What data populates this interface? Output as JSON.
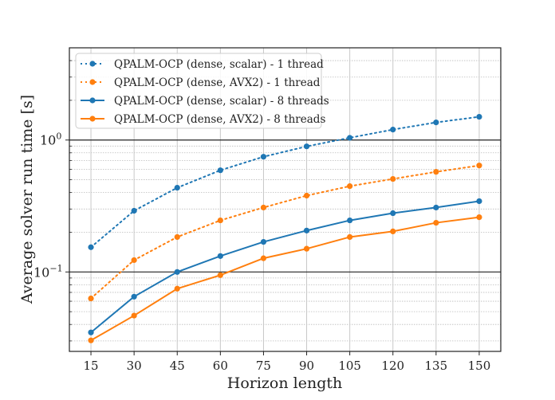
{
  "chart_data": {
    "type": "line",
    "title": "",
    "xlabel": "Horizon length",
    "ylabel": "Average solver run time [s]",
    "yscale": "log",
    "ylim": [
      0.025,
      5
    ],
    "xlim": [
      7.5,
      157.5
    ],
    "x": [
      15,
      30,
      45,
      60,
      75,
      90,
      105,
      120,
      135,
      150
    ],
    "xticks": [
      "15",
      "30",
      "45",
      "60",
      "75",
      "90",
      "105",
      "120",
      "135",
      "150"
    ],
    "yticks": [
      {
        "value": 1,
        "base": "10",
        "exp": "0"
      },
      {
        "value": 0.1,
        "base": "10",
        "exp": "−1"
      }
    ],
    "grid": true,
    "legend_position": "top-left",
    "series": [
      {
        "name": "QPALM-OCP (dense, scalar) - 1 thread",
        "color": "#1f77b4",
        "style": "dotted",
        "values": [
          0.154,
          0.291,
          0.435,
          0.59,
          0.747,
          0.895,
          1.04,
          1.2,
          1.36,
          1.5
        ]
      },
      {
        "name": "QPALM-OCP (dense, AVX2) - 1 thread",
        "color": "#ff7f0e",
        "style": "dotted",
        "values": [
          0.063,
          0.123,
          0.184,
          0.246,
          0.308,
          0.379,
          0.447,
          0.507,
          0.574,
          0.641
        ]
      },
      {
        "name": "QPALM-OCP (dense, scalar) - 8 threads",
        "color": "#1f77b4",
        "style": "solid",
        "values": [
          0.0348,
          0.065,
          0.1,
          0.132,
          0.169,
          0.206,
          0.246,
          0.279,
          0.308,
          0.344
        ]
      },
      {
        "name": "QPALM-OCP (dense, AVX2) - 8 threads",
        "color": "#ff7f0e",
        "style": "solid",
        "values": [
          0.0303,
          0.0467,
          0.0747,
          0.0946,
          0.127,
          0.15,
          0.184,
          0.203,
          0.236,
          0.26
        ]
      }
    ]
  }
}
